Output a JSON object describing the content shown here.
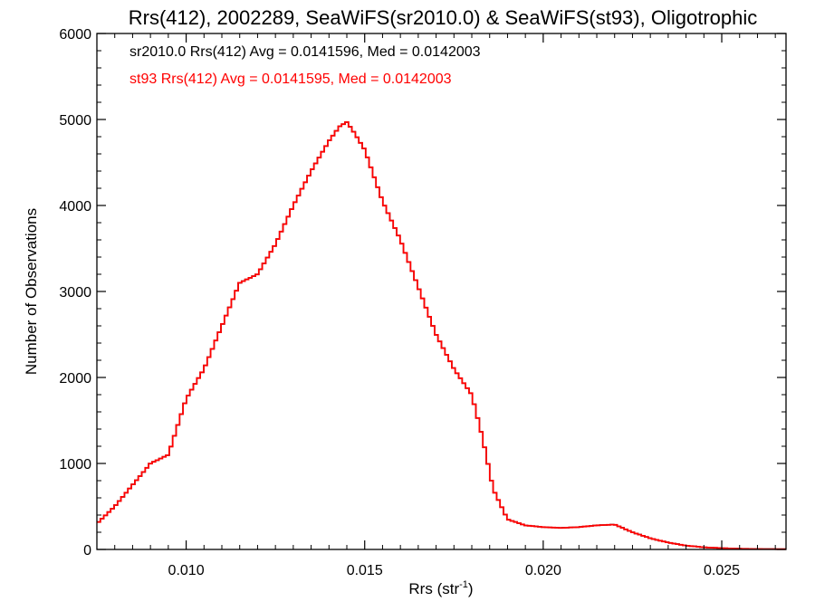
{
  "chart_data": {
    "type": "line",
    "title": "Rrs(412), 2002289, SeaWiFS(sr2010.0) & SeaWiFS(st93), Oligotrophic",
    "xlabel": "Rrs (str",
    "xlabel_sup": "-1",
    "xlabel_close": ")",
    "ylabel": "Number of Observations",
    "xlim": [
      0.0075,
      0.0268
    ],
    "ylim": [
      0,
      6000
    ],
    "x_ticks": [
      0.01,
      0.015,
      0.02,
      0.025
    ],
    "x_tick_labels": [
      "0.010",
      "0.015",
      "0.020",
      "0.025"
    ],
    "y_ticks": [
      0,
      1000,
      2000,
      3000,
      4000,
      5000,
      6000
    ],
    "y_tick_labels": [
      "0",
      "1000",
      "2000",
      "3000",
      "4000",
      "5000",
      "6000"
    ],
    "grid": false,
    "annotations": [
      {
        "text": "sr2010.0 Rrs(412) Avg = 0.0141596, Med = 0.0142003",
        "color": "#000000"
      },
      {
        "text": "st93 Rrs(412) Avg = 0.0141595, Med = 0.0142003",
        "color": "#ff0000"
      }
    ],
    "series": [
      {
        "color": "#000000",
        "x": [
          0.0075,
          0.008,
          0.0085,
          0.009,
          0.0095,
          0.01,
          0.0105,
          0.011,
          0.0115,
          0.012,
          0.0125,
          0.013,
          0.0135,
          0.014,
          0.0143,
          0.0145,
          0.0147,
          0.015,
          0.0155,
          0.016,
          0.0165,
          0.017,
          0.0175,
          0.018,
          0.0183,
          0.0186,
          0.019,
          0.0195,
          0.02,
          0.0205,
          0.021,
          0.0215,
          0.022,
          0.0225,
          0.023,
          0.0235,
          0.024,
          0.0245,
          0.025,
          0.0255,
          0.026,
          0.0268
        ],
        "values": [
          300,
          500,
          750,
          1000,
          1100,
          1750,
          2100,
          2600,
          3100,
          3200,
          3550,
          4000,
          4400,
          4750,
          4920,
          4970,
          4850,
          4650,
          4050,
          3600,
          3050,
          2500,
          2100,
          1800,
          1300,
          700,
          350,
          280,
          260,
          250,
          260,
          280,
          290,
          200,
          130,
          80,
          45,
          25,
          15,
          8,
          5,
          3
        ]
      },
      {
        "color": "#ff0000",
        "x": [
          0.0075,
          0.008,
          0.0085,
          0.009,
          0.0095,
          0.01,
          0.0105,
          0.011,
          0.0115,
          0.012,
          0.0125,
          0.013,
          0.0135,
          0.014,
          0.0143,
          0.0145,
          0.0147,
          0.015,
          0.0155,
          0.016,
          0.0165,
          0.017,
          0.0175,
          0.018,
          0.0183,
          0.0186,
          0.019,
          0.0195,
          0.02,
          0.0205,
          0.021,
          0.0215,
          0.022,
          0.0225,
          0.023,
          0.0235,
          0.024,
          0.0245,
          0.025,
          0.0255,
          0.026,
          0.0268
        ],
        "values": [
          300,
          500,
          750,
          1000,
          1100,
          1750,
          2100,
          2600,
          3100,
          3200,
          3550,
          4000,
          4400,
          4750,
          4920,
          4970,
          4850,
          4650,
          4050,
          3600,
          3050,
          2500,
          2100,
          1800,
          1300,
          700,
          350,
          280,
          260,
          250,
          260,
          280,
          290,
          200,
          130,
          80,
          45,
          25,
          15,
          8,
          5,
          3
        ]
      }
    ]
  }
}
